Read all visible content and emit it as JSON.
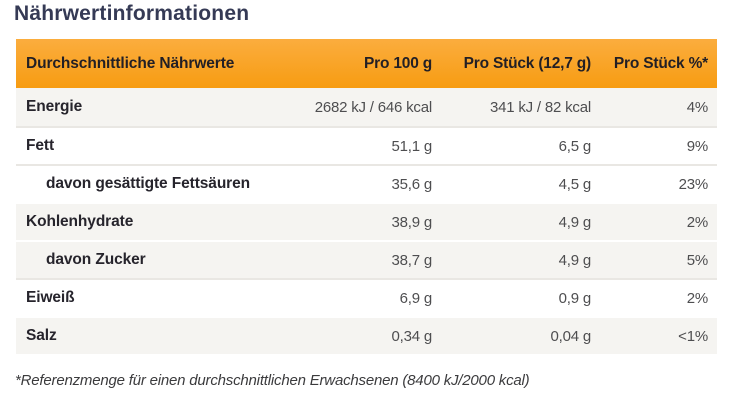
{
  "section_title": "Nährwertinformationen",
  "colors": {
    "header_orange_top": "#fbad3e",
    "header_orange_bottom": "#f79c12",
    "row_shaded": "#f5f4f1",
    "row_plain": "#ffffff",
    "separator_light": "#e9e7e3",
    "title_text": "#353a55",
    "label_text": "#26242c",
    "value_text": "#4e4e50"
  },
  "table": {
    "header": {
      "nutrients": "Durchschnittliche Nährwerte",
      "per_100g": "Pro 100 g",
      "per_piece": "Pro Stück (12,7 g)",
      "percent": "Pro Stück %*"
    },
    "rows": [
      {
        "label": "Energie",
        "per_100g": "2682 kJ / 646 kcal",
        "per_piece": "341 kJ / 82 kcal",
        "percent": "4%"
      },
      {
        "label": "Fett",
        "per_100g": "51,1 g",
        "per_piece": "6,5 g",
        "percent": "9%"
      },
      {
        "label": "davon gesättigte Fettsäuren",
        "per_100g": "35,6 g",
        "per_piece": "4,5 g",
        "percent": "23%"
      },
      {
        "label": "Kohlenhydrate",
        "per_100g": "38,9 g",
        "per_piece": "4,9 g",
        "percent": "2%"
      },
      {
        "label": "davon Zucker",
        "per_100g": "38,7 g",
        "per_piece": "4,9 g",
        "percent": "5%"
      },
      {
        "label": "Eiweiß",
        "per_100g": "6,9 g",
        "per_piece": "0,9 g",
        "percent": "2%"
      },
      {
        "label": "Salz",
        "per_100g": "0,34 g",
        "per_piece": "0,04 g",
        "percent": "<1%"
      }
    ],
    "footnote": "*Referenzmenge für einen durchschnittlichen Erwachsenen (8400 kJ/2000 kcal)"
  }
}
